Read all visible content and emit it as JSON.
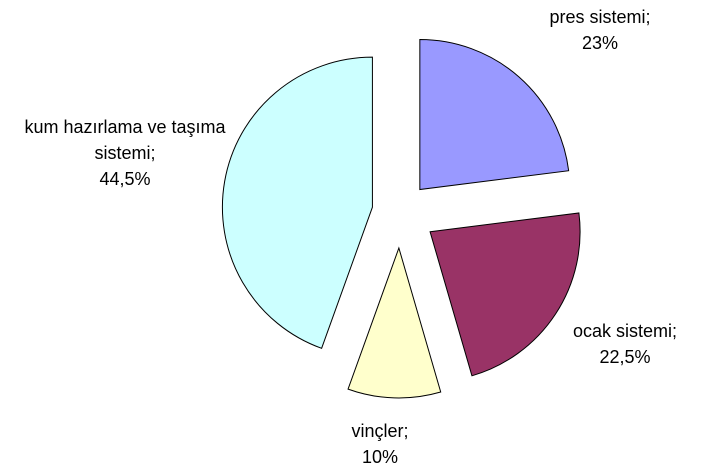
{
  "chart_data": {
    "type": "pie",
    "categories": [
      "pres sistemi;",
      "ocak sistemi;",
      "vinçler;",
      "kum hazırlama ve taşıma sistemi;"
    ],
    "values": [
      23,
      22.5,
      10,
      44.5
    ],
    "value_labels": [
      "23%",
      "22,5%",
      "10%",
      "44,5%"
    ],
    "colors": [
      "#9999ff",
      "#993366",
      "#ffffcc",
      "#ccffff"
    ]
  }
}
